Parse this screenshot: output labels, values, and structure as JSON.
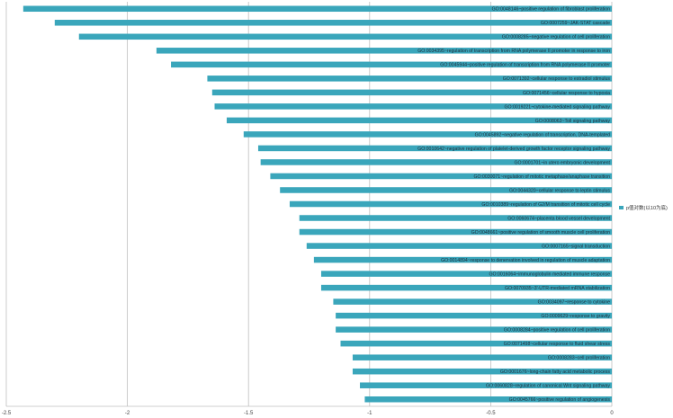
{
  "chart_data": {
    "type": "bar",
    "orientation": "horizontal",
    "bar_color": "#3aa6bb",
    "grid": true,
    "legend_placement": "right",
    "xlim": [
      -2.5,
      0
    ],
    "xticks": [
      "-2.5",
      "-2",
      "-1.5",
      "-1",
      "-0.5",
      "0"
    ],
    "legend": "p值对数(以10为底)",
    "categories": [
      "GO:0048146~positive regulation of fibroblast proliferation",
      "GO:0007259~JAK-STAT cascade",
      "GO:0008285~negative regulation of cell proliferation",
      "GO:0034395~regulation of transcription from RNA polymerase II promoter in response to iron",
      "GO:0045944~positive regulation of transcription from RNA polymerase II promoter",
      "GO:0071392~cellular response to estradiol stimulus",
      "GO:0071456~cellular response to hypoxia",
      "GO:0019221~cytokine-mediated signaling pathway",
      "GO:0008063~Toll signaling pathway",
      "GO:0045892~negative regulation of transcription, DNA-templated",
      "GO:0010642~negative regulation of platelet-derived growth factor receptor signaling pathway",
      "GO:0001701~in utero embryonic development",
      "GO:0030071~regulation of mitotic metaphase/anaphase transition",
      "GO:0044320~cellular response to leptin stimulus",
      "GO:0010389~regulation of G2/M transition of mitotic cell cycle",
      "GO:0060674~placenta blood vessel development",
      "GO:0048661~positive regulation of smooth muscle cell proliferation",
      "GO:0007165~signal transduction",
      "GO:0014894~response to denervation involved in regulation of muscle adaptation",
      "GO:0016064~immunoglobulin mediated immune response",
      "GO:0070935~3'-UTR-mediated mRNA stabilization",
      "GO:0034097~response to cytokine",
      "GO:0009629~response to gravity",
      "GO:0008284~positive regulation of cell proliferation",
      "GO:0071498~cellular response to fluid shear stress",
      "GO:0008283~cell proliferation",
      "GO:0001676~long-chain fatty acid metabolic process",
      "GO:0060828~regulation of canonical Wnt signaling pathway",
      "GO:0045766~positive regulation of angiogenesis"
    ],
    "values": [
      -2.43,
      -2.3,
      -2.2,
      -1.88,
      -1.82,
      -1.67,
      -1.65,
      -1.64,
      -1.59,
      -1.52,
      -1.46,
      -1.45,
      -1.41,
      -1.37,
      -1.33,
      -1.29,
      -1.29,
      -1.26,
      -1.23,
      -1.2,
      -1.2,
      -1.15,
      -1.14,
      -1.14,
      -1.12,
      -1.07,
      -1.07,
      -1.04,
      -1.02
    ]
  }
}
